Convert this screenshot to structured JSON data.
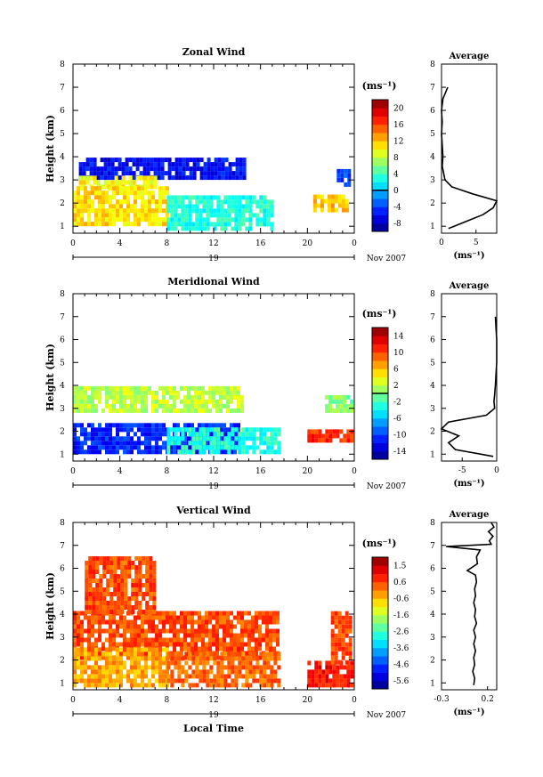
{
  "common": {
    "ylabel": "Height (km)",
    "xlabel": "Local Time",
    "unit": "(ms⁻¹)",
    "date_label": "Nov 2007",
    "day_label": "19",
    "x_ticks": [
      "0",
      "4",
      "8",
      "12",
      "16",
      "20",
      "0"
    ],
    "y_ticks": [
      "1",
      "2",
      "3",
      "4",
      "5",
      "6",
      "7",
      "8"
    ]
  },
  "chart_data": [
    {
      "type": "heatmap",
      "title": "Zonal Wind",
      "xlim": [
        0,
        24
      ],
      "ylim": [
        0.7,
        8.0
      ],
      "colorbar": {
        "ticks": [
          "20",
          "16",
          "12",
          "8",
          "4",
          "0",
          "-4",
          "-8"
        ],
        "min": -10,
        "max": 22,
        "zero_line": 0
      },
      "regions": [
        {
          "x": [
            0.5,
            14.5
          ],
          "y": [
            3.0,
            3.9
          ],
          "value": -6
        },
        {
          "x": [
            0.5,
            7.0
          ],
          "y": [
            2.6,
            3.0
          ],
          "value": 10
        },
        {
          "x": [
            0.0,
            8.0
          ],
          "y": [
            1.0,
            2.6
          ],
          "value": 11
        },
        {
          "x": [
            8.0,
            17.0
          ],
          "y": [
            0.8,
            2.3
          ],
          "value": 3
        },
        {
          "x": [
            20.5,
            23.5
          ],
          "y": [
            1.6,
            2.2
          ],
          "value": 12
        },
        {
          "x": [
            22.5,
            24.0
          ],
          "y": [
            2.7,
            3.4
          ],
          "value": -4
        }
      ],
      "average": {
        "title": "Average",
        "xlabel": "(ms⁻¹)",
        "xlim": [
          0,
          8
        ],
        "x_ticks": [
          "0",
          "5"
        ],
        "profile": {
          "height": [
            0.9,
            1.2,
            1.5,
            1.8,
            2.1,
            2.4,
            2.7,
            3.0,
            3.3,
            3.6,
            4.0,
            4.5,
            5.0,
            5.5,
            6.0,
            6.5,
            7.0
          ],
          "value": [
            1.0,
            3.5,
            6.0,
            7.5,
            8.0,
            4.5,
            1.5,
            0.5,
            0.3,
            0.1,
            0.2,
            0.1,
            0.0,
            0.1,
            0.0,
            0.2,
            0.9
          ]
        }
      }
    },
    {
      "type": "heatmap",
      "title": "Meridional Wind",
      "xlim": [
        0,
        24
      ],
      "ylim": [
        0.7,
        8.0
      ],
      "colorbar": {
        "ticks": [
          "14",
          "10",
          "6",
          "2",
          "-2",
          "-6",
          "-10",
          "-14"
        ],
        "min": -16,
        "max": 16,
        "zero_line": 0
      },
      "regions": [
        {
          "x": [
            0.0,
            14.5
          ],
          "y": [
            2.8,
            3.8
          ],
          "value": 2
        },
        {
          "x": [
            0.0,
            14.0
          ],
          "y": [
            1.0,
            2.2
          ],
          "value": -11
        },
        {
          "x": [
            8.0,
            17.5
          ],
          "y": [
            1.0,
            2.0
          ],
          "value": -3
        },
        {
          "x": [
            20.0,
            24.0
          ],
          "y": [
            1.5,
            2.0
          ],
          "value": 11
        },
        {
          "x": [
            21.5,
            24.0
          ],
          "y": [
            2.8,
            3.4
          ],
          "value": 0
        }
      ],
      "average": {
        "title": "Average",
        "xlabel": "(ms⁻¹)",
        "xlim": [
          -8,
          0
        ],
        "x_ticks": [
          "-5",
          "0"
        ],
        "profile": {
          "height": [
            0.9,
            1.2,
            1.5,
            1.8,
            2.1,
            2.4,
            2.7,
            3.0,
            3.3,
            3.6,
            4.0,
            4.5,
            5.0,
            5.5,
            6.0,
            6.5,
            7.0
          ],
          "value": [
            -0.5,
            -6.0,
            -7.0,
            -5.5,
            -8.0,
            -7.0,
            -1.5,
            -0.3,
            -0.4,
            -0.3,
            -0.2,
            -0.1,
            0.0,
            0.0,
            0.0,
            -0.1,
            -0.2
          ]
        }
      }
    },
    {
      "type": "heatmap",
      "title": "Vertical Wind",
      "xlim": [
        0,
        24
      ],
      "ylim": [
        0.7,
        8.0
      ],
      "colorbar": {
        "ticks": [
          "1.5",
          "0.6",
          "-0.6",
          "-1.6",
          "-2.6",
          "-3.6",
          "-4.6",
          "-5.6"
        ],
        "min": -6.0,
        "max": 2.0
      },
      "regions": [
        {
          "x": [
            0.0,
            17.5
          ],
          "y": [
            2.0,
            4.0
          ],
          "value": 0.4
        },
        {
          "x": [
            0.0,
            8.0
          ],
          "y": [
            0.8,
            2.5
          ],
          "value": -0.3
        },
        {
          "x": [
            8.0,
            17.5
          ],
          "y": [
            0.8,
            2.2
          ],
          "value": 0.2
        },
        {
          "x": [
            20.0,
            24.0
          ],
          "y": [
            0.8,
            1.8
          ],
          "value": 0.9
        },
        {
          "x": [
            22.0,
            24.0
          ],
          "y": [
            1.8,
            4.0
          ],
          "value": 0.4
        },
        {
          "x": [
            1.0,
            7.0
          ],
          "y": [
            4.0,
            6.5
          ],
          "value": 0.4
        }
      ],
      "average": {
        "title": "Average",
        "xlabel": "(ms⁻¹)",
        "xlim": [
          -0.3,
          0.3
        ],
        "x_ticks": [
          "-0.3",
          "0.2"
        ],
        "profile": {
          "height": [
            0.9,
            1.2,
            1.5,
            1.8,
            2.1,
            2.4,
            2.7,
            3.0,
            3.3,
            3.6,
            3.9,
            4.2,
            4.5,
            4.8,
            5.1,
            5.4,
            5.7,
            5.9,
            6.2,
            6.5,
            6.8,
            6.95,
            7.05,
            7.2,
            7.4,
            7.6,
            7.8,
            8.0
          ],
          "value": [
            0.05,
            0.06,
            0.04,
            0.06,
            0.05,
            0.07,
            0.05,
            0.07,
            0.05,
            0.08,
            0.06,
            0.07,
            0.05,
            0.07,
            0.06,
            0.08,
            0.07,
            -0.02,
            0.09,
            0.08,
            0.12,
            -0.25,
            0.24,
            0.22,
            0.26,
            0.21,
            0.27,
            0.24
          ]
        }
      }
    }
  ]
}
